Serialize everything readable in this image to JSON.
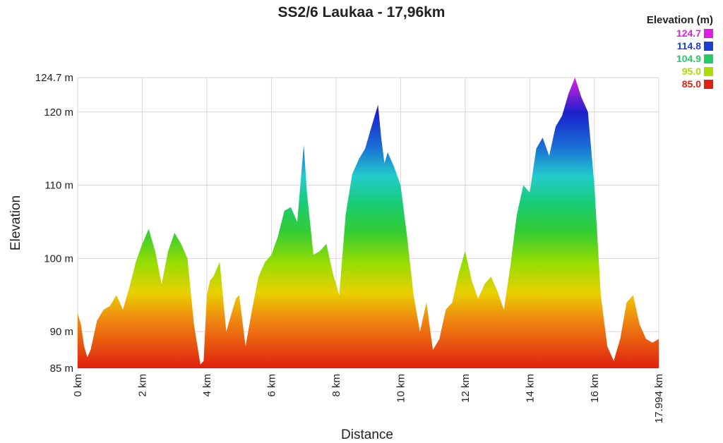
{
  "chart_data": {
    "type": "area",
    "title": "SS2/6 Laukaa - 17,96km",
    "xlabel": "Distance",
    "ylabel": "Elevation",
    "xlim": [
      0,
      17.994
    ],
    "ylim": [
      85,
      124.7
    ],
    "y_ticks": [
      {
        "value": 85,
        "label": "85 m"
      },
      {
        "value": 90,
        "label": "90 m"
      },
      {
        "value": 100,
        "label": "100 m"
      },
      {
        "value": 110,
        "label": "110 m"
      },
      {
        "value": 120,
        "label": "120 m"
      },
      {
        "value": 124.7,
        "label": "124.7 m"
      }
    ],
    "x_ticks": [
      {
        "value": 0,
        "label": "0 km"
      },
      {
        "value": 2,
        "label": "2 km"
      },
      {
        "value": 4,
        "label": "4 km"
      },
      {
        "value": 6,
        "label": "6 km"
      },
      {
        "value": 8,
        "label": "8 km"
      },
      {
        "value": 10,
        "label": "10 km"
      },
      {
        "value": 12,
        "label": "12 km"
      },
      {
        "value": 14,
        "label": "14 km"
      },
      {
        "value": 16,
        "label": "16 km"
      },
      {
        "value": 17.994,
        "label": "17.994 km"
      }
    ],
    "grid": true,
    "legend_position": "top-right",
    "legend": {
      "title": "Elevation (m)",
      "items": [
        {
          "label": "124.7",
          "color": "#e020e0"
        },
        {
          "label": "114.8",
          "color": "#1a3fd6"
        },
        {
          "label": "104.9",
          "color": "#22cc66"
        },
        {
          "label": "95.0",
          "color": "#aadd00"
        },
        {
          "label": "85.0",
          "color": "#e02010"
        }
      ]
    },
    "x": [
      0.0,
      0.1,
      0.2,
      0.3,
      0.4,
      0.5,
      0.6,
      0.8,
      1.0,
      1.2,
      1.4,
      1.6,
      1.8,
      2.0,
      2.2,
      2.4,
      2.6,
      2.8,
      3.0,
      3.2,
      3.4,
      3.6,
      3.8,
      3.9,
      4.0,
      4.1,
      4.2,
      4.4,
      4.6,
      4.8,
      4.9,
      5.0,
      5.2,
      5.4,
      5.6,
      5.8,
      6.0,
      6.2,
      6.4,
      6.6,
      6.8,
      7.0,
      7.1,
      7.3,
      7.5,
      7.7,
      7.9,
      8.1,
      8.3,
      8.5,
      8.7,
      8.9,
      9.1,
      9.3,
      9.4,
      9.5,
      9.6,
      9.8,
      10.0,
      10.2,
      10.4,
      10.6,
      10.8,
      11.0,
      11.2,
      11.4,
      11.6,
      11.8,
      12.0,
      12.2,
      12.4,
      12.6,
      12.8,
      13.0,
      13.2,
      13.4,
      13.6,
      13.8,
      14.0,
      14.2,
      14.4,
      14.6,
      14.8,
      15.0,
      15.2,
      15.4,
      15.6,
      15.8,
      16.0,
      16.2,
      16.4,
      16.6,
      16.8,
      17.0,
      17.2,
      17.4,
      17.6,
      17.8,
      17.994
    ],
    "y": [
      92.5,
      91.0,
      88.0,
      86.5,
      87.5,
      89.5,
      91.5,
      93.0,
      93.5,
      95.0,
      93.0,
      96.0,
      99.5,
      102.0,
      104.0,
      101.0,
      96.5,
      101.0,
      103.5,
      102.0,
      100.0,
      91.0,
      85.5,
      86.0,
      95.0,
      97.0,
      97.5,
      99.5,
      90.0,
      93.0,
      94.5,
      95.0,
      88.0,
      93.0,
      97.5,
      99.5,
      100.5,
      103.0,
      106.5,
      107.0,
      105.0,
      115.5,
      109.0,
      100.5,
      101.0,
      102.0,
      98.0,
      95.0,
      106.0,
      111.5,
      113.5,
      115.0,
      118.0,
      121.0,
      116.5,
      113.0,
      114.5,
      112.5,
      110.0,
      103.0,
      95.0,
      90.0,
      94.0,
      87.5,
      89.0,
      93.0,
      94.0,
      98.0,
      101.0,
      97.0,
      94.5,
      96.5,
      97.5,
      95.5,
      93.0,
      99.0,
      106.0,
      110.0,
      109.0,
      115.0,
      116.5,
      114.0,
      118.0,
      119.5,
      122.5,
      124.7,
      122.0,
      120.0,
      110.0,
      95.0,
      88.0,
      86.0,
      89.0,
      94.0,
      95.0,
      91.0,
      89.0,
      88.5,
      89.0
    ]
  }
}
